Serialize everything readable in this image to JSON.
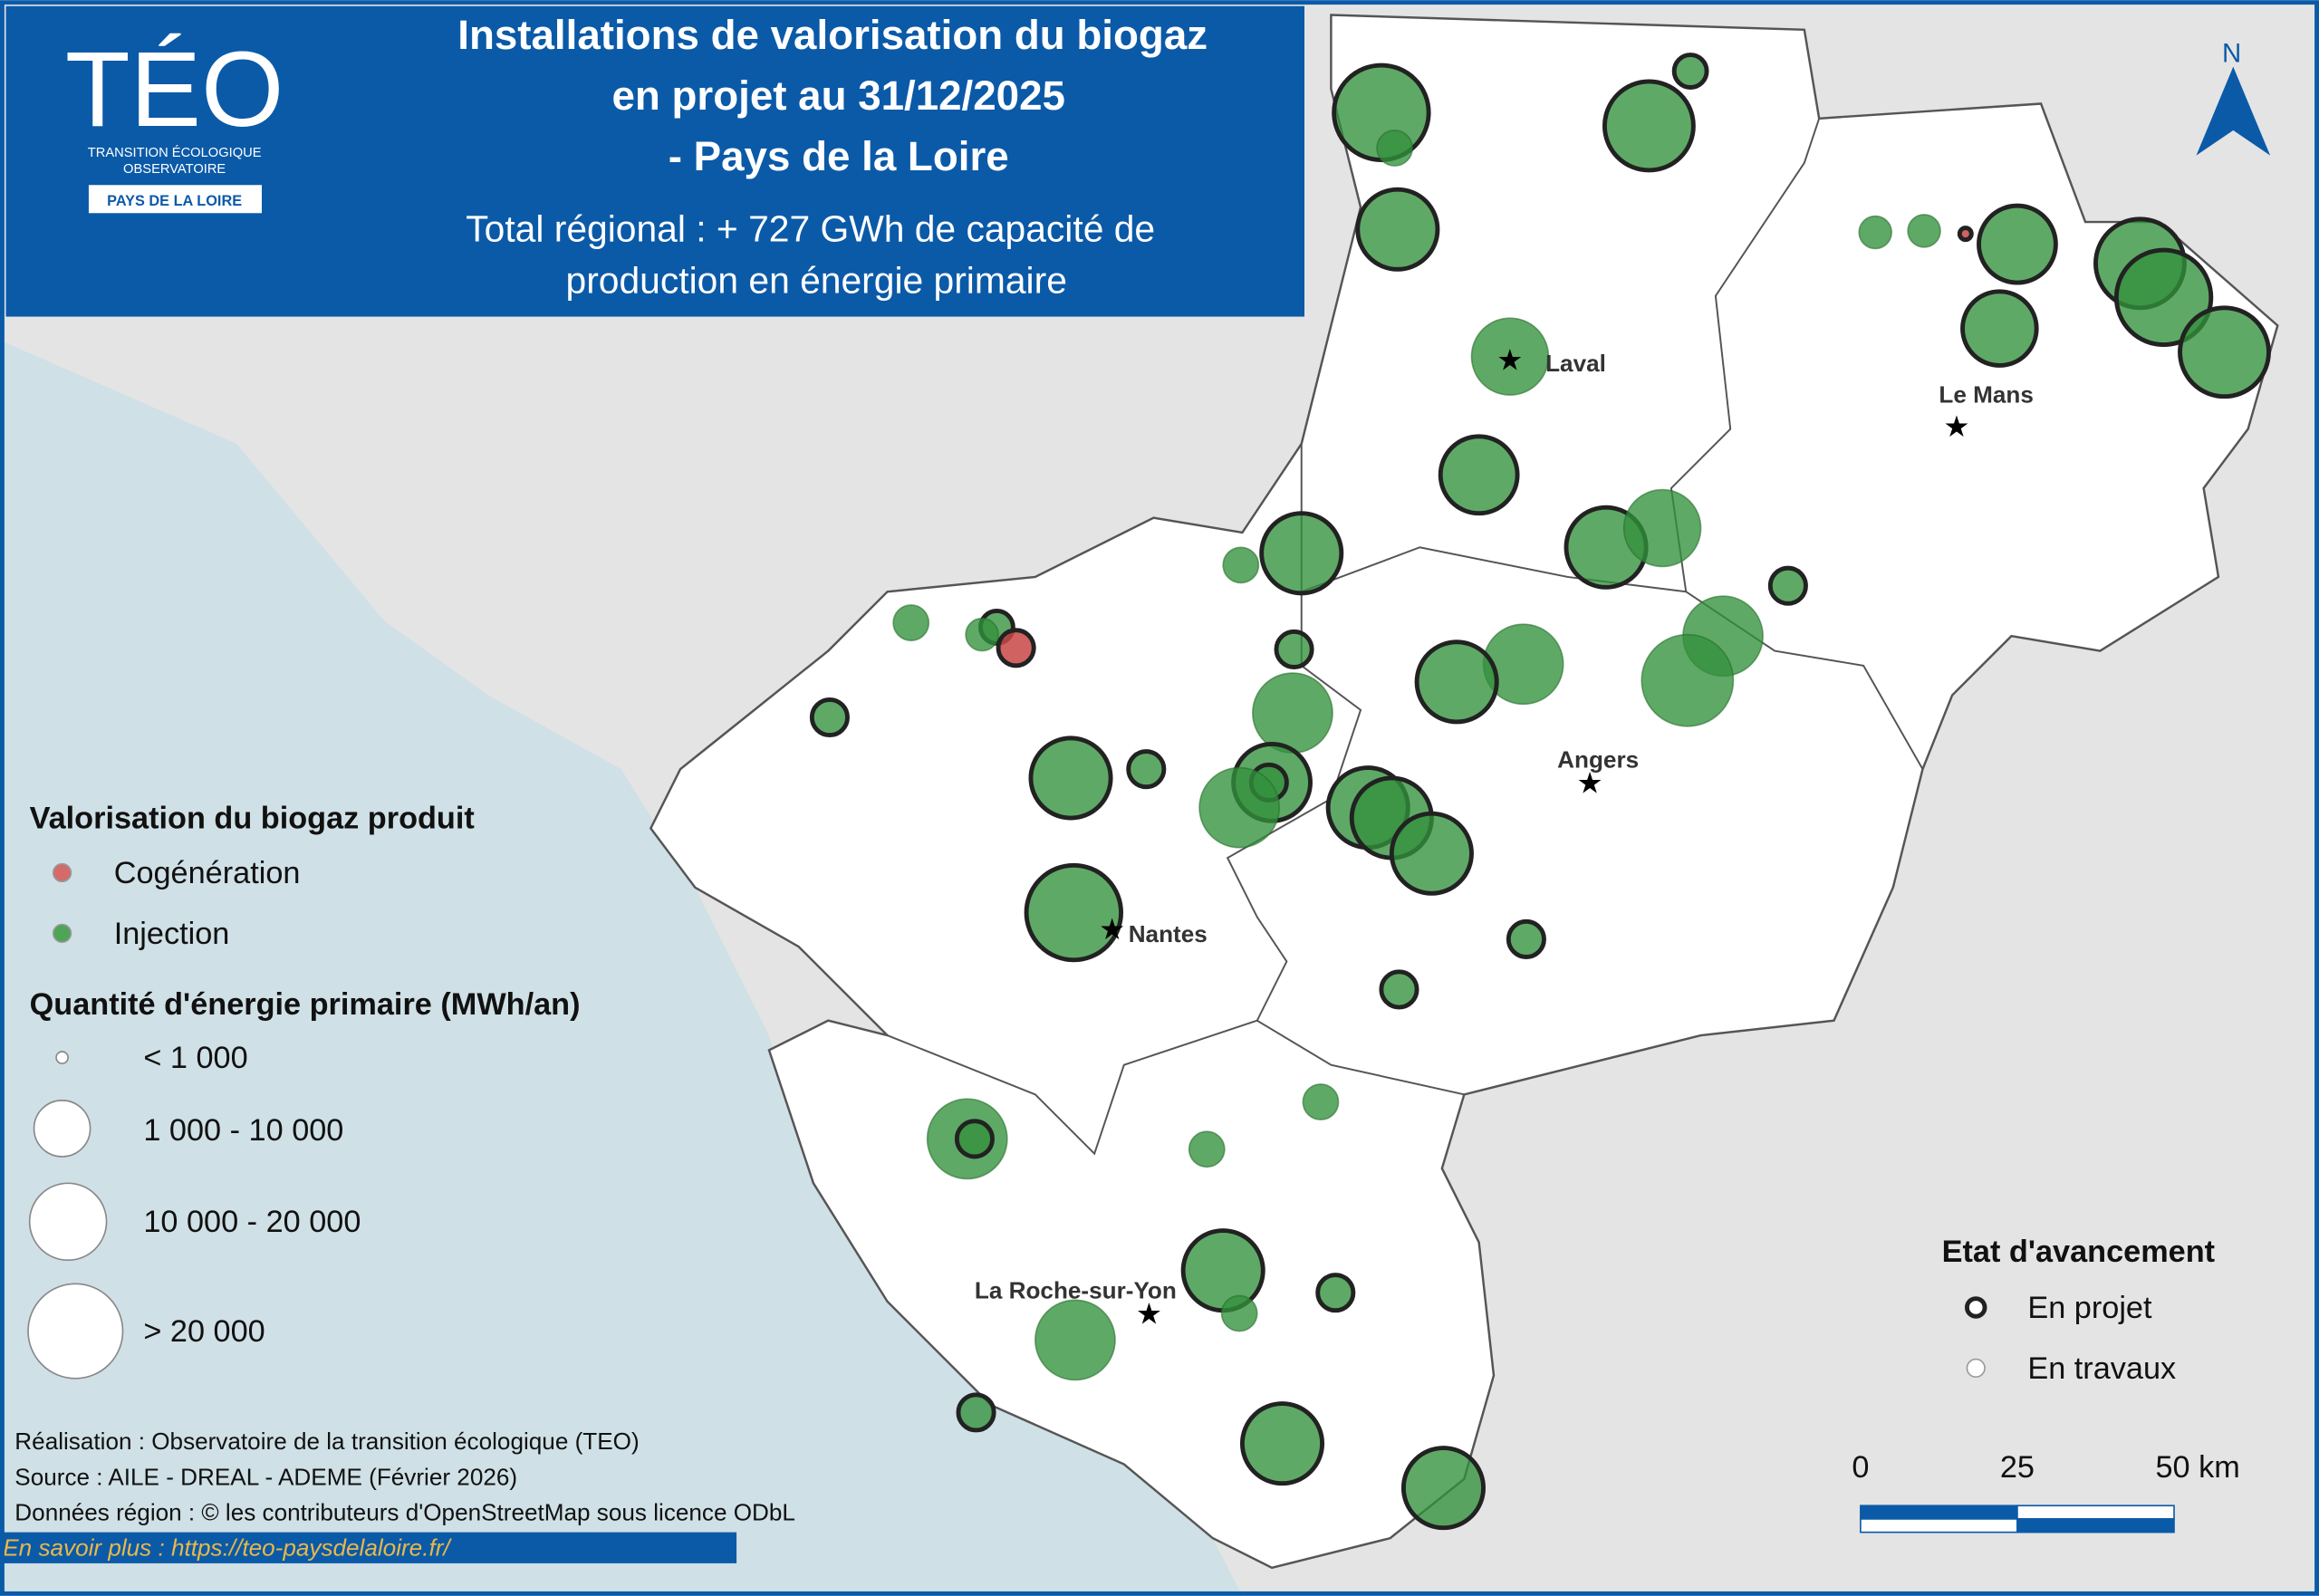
{
  "header": {
    "title_lines": [
      "Installations de valorisation du biogaz",
      "en projet au 31/12/2025",
      "- Pays de la Loire"
    ],
    "subtitle_lines": [
      "Total régional : + 727 GWh de capacité de",
      "production en énergie primaire"
    ]
  },
  "logo": {
    "name": "TÉO",
    "line1": "TRANSITION ÉCOLOGIQUE",
    "line2": "OBSERVATOIRE",
    "region": "PAYS DE LA LOIRE"
  },
  "north": "N",
  "cities": [
    "Laval",
    "Le Mans",
    "Angers",
    "Nantes",
    "La Roche-sur-Yon"
  ],
  "legend_use": {
    "title": "Valorisation du biogaz produit",
    "items": [
      "Cogénération",
      "Injection"
    ]
  },
  "legend_size": {
    "title": "Quantité d'énergie primaire (MWh/an)",
    "items": [
      "< 1 000",
      "1 000 -  10 000",
      "10 000 -  20 000",
      "> 20 000"
    ]
  },
  "legend_status": {
    "title": "Etat d'avancement",
    "items": [
      "En projet",
      "En travaux"
    ]
  },
  "scale": [
    "0",
    "25",
    "50 km"
  ],
  "credits": [
    "Réalisation : Observatoire de la transition écologique (TEO)",
    "Source : AILE - DREAL - ADEME (Février 2026)",
    "Données région : © les contributeurs d'OpenStreetMap sous licence ODbL"
  ],
  "link": "En savoir plus : https://teo-paysdelaloire.fr/"
}
